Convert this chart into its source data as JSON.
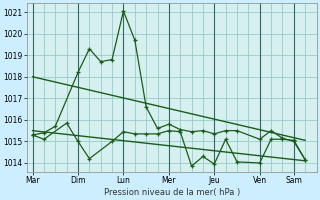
{
  "xlabel": "Pression niveau de la mer( hPa )",
  "bg_color": "#cceeff",
  "plot_bg_color": "#d6f0f0",
  "grid_color": "#99cccc",
  "line_color": "#1a5c1a",
  "days": [
    "Mar",
    "Dim",
    "Lun",
    "Mer",
    "Jeu",
    "Ven",
    "Sam"
  ],
  "day_x": [
    0,
    4,
    8,
    12,
    16,
    20,
    23
  ],
  "xlim": [
    -0.5,
    25
  ],
  "ylim": [
    1013.6,
    1021.4
  ],
  "yticks": [
    1014,
    1015,
    1016,
    1017,
    1018,
    1019,
    1020,
    1021
  ],
  "series_upper": [
    [
      0,
      1015.3
    ],
    [
      1,
      1015.4
    ],
    [
      2,
      1015.7
    ],
    [
      4,
      1018.2
    ],
    [
      5,
      1019.3
    ],
    [
      6,
      1018.7
    ],
    [
      7,
      1018.8
    ],
    [
      8,
      1021.05
    ],
    [
      9,
      1019.7
    ],
    [
      10,
      1016.6
    ],
    [
      11,
      1015.6
    ],
    [
      12,
      1015.8
    ],
    [
      13,
      1015.55
    ],
    [
      14,
      1015.45
    ],
    [
      15,
      1015.5
    ],
    [
      16,
      1015.35
    ],
    [
      17,
      1015.5
    ],
    [
      18,
      1015.5
    ],
    [
      20,
      1015.1
    ],
    [
      21,
      1015.5
    ],
    [
      22,
      1015.15
    ],
    [
      23,
      1015.0
    ],
    [
      24,
      1014.15
    ]
  ],
  "series_lower": [
    [
      0,
      1015.3
    ],
    [
      1,
      1015.1
    ],
    [
      3,
      1015.85
    ],
    [
      4,
      1015.0
    ],
    [
      5,
      1014.2
    ],
    [
      7,
      1015.0
    ],
    [
      8,
      1015.45
    ],
    [
      9,
      1015.35
    ],
    [
      10,
      1015.35
    ],
    [
      11,
      1015.35
    ],
    [
      12,
      1015.5
    ],
    [
      13,
      1015.45
    ],
    [
      14,
      1013.85
    ],
    [
      15,
      1014.3
    ],
    [
      16,
      1013.95
    ],
    [
      17,
      1015.1
    ],
    [
      18,
      1014.05
    ],
    [
      20,
      1014.0
    ],
    [
      21,
      1015.1
    ],
    [
      22,
      1015.1
    ],
    [
      23,
      1015.05
    ],
    [
      24,
      1014.15
    ]
  ],
  "trend1_x": [
    0,
    24
  ],
  "trend1_y": [
    1018.0,
    1015.05
  ],
  "trend2_x": [
    0,
    24
  ],
  "trend2_y": [
    1015.5,
    1014.1
  ]
}
